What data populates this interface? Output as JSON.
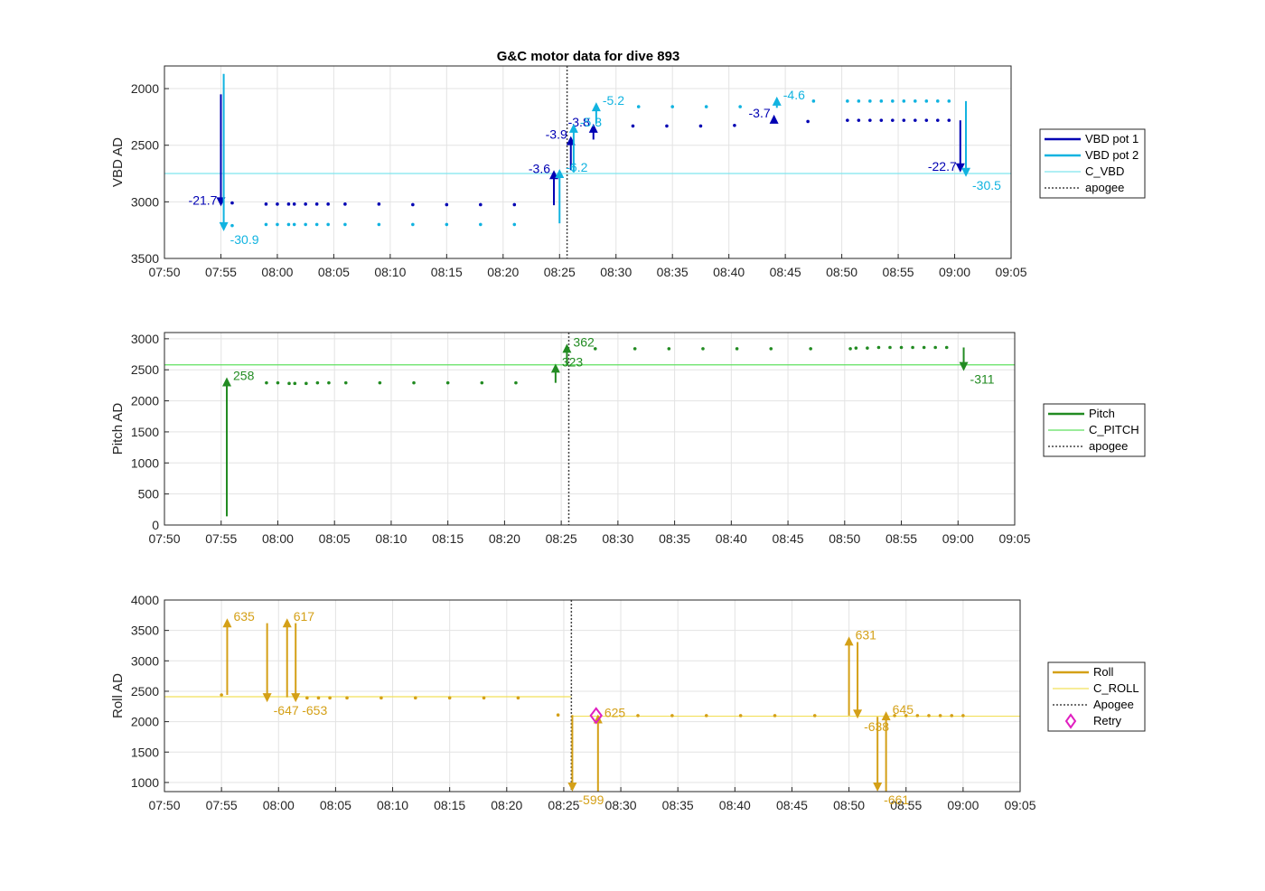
{
  "chart_data": [
    {
      "type": "line",
      "title": "G&C motor data for dive 893",
      "xlabel": "",
      "ylabel": "VBD AD",
      "x_range": [
        "07:50",
        "09:05"
      ],
      "ylim": [
        1800,
        3500
      ],
      "y_reversed": true,
      "yticks": [
        2000,
        2500,
        3000,
        3500
      ],
      "grid": true,
      "legend_position": "right",
      "legend": [
        "VBD pot 1",
        "VBD pot 2",
        "C_VBD",
        "apogee"
      ],
      "apogee_time": "08:25:40",
      "reference_lines": [
        {
          "name": "C_VBD",
          "y": 2750,
          "color": "#7fe5ee"
        }
      ],
      "series": [
        {
          "name": "VBD pot 1",
          "color": "#0000b3",
          "points": [
            [
              "07:56",
              3010
            ],
            [
              "07:59",
              3020
            ],
            [
              "08:00",
              3020
            ],
            [
              "08:01",
              3020
            ],
            [
              "08:01:30",
              3020
            ],
            [
              "08:02:30",
              3020
            ],
            [
              "08:03:30",
              3020
            ],
            [
              "08:04:30",
              3020
            ],
            [
              "08:06",
              3020
            ],
            [
              "08:09",
              3020
            ],
            [
              "08:12",
              3025
            ],
            [
              "08:15",
              3025
            ],
            [
              "08:18",
              3025
            ],
            [
              "08:21",
              3025
            ],
            [
              "08:31:30",
              2330
            ],
            [
              "08:34:30",
              2330
            ],
            [
              "08:37:30",
              2330
            ],
            [
              "08:40:30",
              2325
            ],
            [
              "08:47",
              2290
            ],
            [
              "08:50:30",
              2280
            ],
            [
              "08:51:30",
              2280
            ],
            [
              "08:52:30",
              2280
            ],
            [
              "08:53:30",
              2280
            ],
            [
              "08:54:30",
              2280
            ],
            [
              "08:55:30",
              2280
            ],
            [
              "08:56:30",
              2280
            ],
            [
              "08:57:30",
              2280
            ],
            [
              "08:58:30",
              2280
            ],
            [
              "08:59:30",
              2280
            ]
          ],
          "moves": [
            {
              "t": "07:55",
              "from": 2050,
              "to": 3040,
              "label": "-21.7"
            },
            {
              "t": "08:24:30",
              "from": 3030,
              "to": 2720,
              "label": "-3.6"
            },
            {
              "t": "08:26",
              "from": 2720,
              "to": 2420,
              "label": "-3.9"
            },
            {
              "t": "08:28",
              "from": 2450,
              "to": 2310,
              "label": "-3.8"
            },
            {
              "t": "08:44",
              "from": 2300,
              "to": 2230,
              "label": "-3.7"
            },
            {
              "t": "09:00:30",
              "from": 2280,
              "to": 2740,
              "label": "-22.7"
            }
          ]
        },
        {
          "name": "VBD pot 2",
          "color": "#11b3e0",
          "points": [
            [
              "07:56",
              3210
            ],
            [
              "07:59",
              3200
            ],
            [
              "08:00",
              3200
            ],
            [
              "08:01",
              3200
            ],
            [
              "08:01:30",
              3200
            ],
            [
              "08:02:30",
              3200
            ],
            [
              "08:03:30",
              3200
            ],
            [
              "08:04:30",
              3200
            ],
            [
              "08:06",
              3200
            ],
            [
              "08:09",
              3200
            ],
            [
              "08:12",
              3200
            ],
            [
              "08:15",
              3200
            ],
            [
              "08:18",
              3200
            ],
            [
              "08:21",
              3200
            ],
            [
              "08:32",
              2160
            ],
            [
              "08:35",
              2160
            ],
            [
              "08:38",
              2160
            ],
            [
              "08:41",
              2160
            ],
            [
              "08:47:30",
              2110
            ],
            [
              "08:50:30",
              2110
            ],
            [
              "08:51:30",
              2110
            ],
            [
              "08:52:30",
              2110
            ],
            [
              "08:53:30",
              2110
            ],
            [
              "08:54:30",
              2110
            ],
            [
              "08:55:30",
              2110
            ],
            [
              "08:56:30",
              2110
            ],
            [
              "08:57:30",
              2110
            ],
            [
              "08:58:30",
              2110
            ],
            [
              "08:59:30",
              2110
            ]
          ],
          "moves": [
            {
              "t": "07:55:15",
              "from": 1870,
              "to": 3260,
              "label": "-30.9"
            },
            {
              "t": "08:25",
              "from": 3190,
              "to": 2710,
              "label": "-6.2"
            },
            {
              "t": "08:26:15",
              "from": 2740,
              "to": 2310,
              "label": "-5.3"
            },
            {
              "t": "08:28:15",
              "from": 2310,
              "to": 2120,
              "label": "-5.2"
            },
            {
              "t": "08:44:15",
              "from": 2170,
              "to": 2070,
              "label": "-4.6"
            },
            {
              "t": "09:01",
              "from": 2110,
              "to": 2780,
              "label": "-30.5"
            }
          ]
        }
      ]
    },
    {
      "type": "line",
      "xlabel": "",
      "ylabel": "Pitch AD",
      "x_range": [
        "07:50",
        "09:05"
      ],
      "ylim": [
        0,
        3100
      ],
      "yticks": [
        0,
        500,
        1000,
        1500,
        2000,
        2500,
        3000
      ],
      "grid": true,
      "legend_position": "right",
      "legend": [
        "Pitch",
        "C_PITCH",
        "apogee"
      ],
      "apogee_time": "08:25:40",
      "reference_lines": [
        {
          "name": "C_PITCH",
          "y": 2580,
          "color": "#5fe05f"
        }
      ],
      "series": [
        {
          "name": "Pitch",
          "color": "#228b22",
          "points": [
            [
              "07:59",
              2290
            ],
            [
              "08:00",
              2290
            ],
            [
              "08:01",
              2280
            ],
            [
              "08:01:30",
              2280
            ],
            [
              "08:02:30",
              2280
            ],
            [
              "08:03:30",
              2290
            ],
            [
              "08:04:30",
              2290
            ],
            [
              "08:06",
              2290
            ],
            [
              "08:09",
              2290
            ],
            [
              "08:12",
              2290
            ],
            [
              "08:15",
              2290
            ],
            [
              "08:18",
              2290
            ],
            [
              "08:21",
              2290
            ],
            [
              "08:28",
              2840
            ],
            [
              "08:31:30",
              2840
            ],
            [
              "08:34:30",
              2840
            ],
            [
              "08:37:30",
              2840
            ],
            [
              "08:40:30",
              2840
            ],
            [
              "08:43:30",
              2840
            ],
            [
              "08:47",
              2840
            ],
            [
              "08:50:30",
              2840
            ],
            [
              "08:51",
              2850
            ],
            [
              "08:52",
              2850
            ],
            [
              "08:53",
              2860
            ],
            [
              "08:54",
              2860
            ],
            [
              "08:55",
              2860
            ],
            [
              "08:56",
              2860
            ],
            [
              "08:57",
              2860
            ],
            [
              "08:58",
              2860
            ],
            [
              "08:59",
              2860
            ]
          ],
          "moves": [
            {
              "t": "07:55:30",
              "from": 140,
              "to": 2380,
              "label": "258"
            },
            {
              "t": "08:24:30",
              "from": 2290,
              "to": 2600,
              "label": "323"
            },
            {
              "t": "08:25:30",
              "from": 2570,
              "to": 2920,
              "label": "362"
            },
            {
              "t": "09:00:30",
              "from": 2860,
              "to": 2480,
              "label": "-311"
            }
          ]
        }
      ]
    },
    {
      "type": "line",
      "xlabel": "",
      "ylabel": "Roll AD",
      "x_range": [
        "07:50",
        "09:05"
      ],
      "ylim": [
        850,
        4000
      ],
      "yticks": [
        1000,
        1500,
        2000,
        2500,
        3000,
        3500,
        4000
      ],
      "grid": true,
      "legend_position": "right",
      "legend": [
        "Roll",
        "C_ROLL",
        "Apogee",
        "Retry"
      ],
      "apogee_time": "08:25:40",
      "reference_lines": [
        {
          "name": "C_ROLL",
          "x_from": "07:50",
          "x_to": "08:25:40",
          "y": 2410,
          "color": "#f2e05a"
        },
        {
          "name": "C_ROLL",
          "x_from": "08:25:40",
          "x_to": "09:05",
          "y": 2090,
          "color": "#f2e05a"
        }
      ],
      "retry": {
        "t": "08:27:50",
        "y": 2100,
        "color": "#e020c0"
      },
      "series": [
        {
          "name": "Roll",
          "color": "#d4a017",
          "points": [
            [
              "07:55",
              2440
            ],
            [
              "07:59",
              2390
            ],
            [
              "08:02:30",
              2390
            ],
            [
              "08:03:30",
              2390
            ],
            [
              "08:04:30",
              2390
            ],
            [
              "08:06",
              2390
            ],
            [
              "08:09",
              2390
            ],
            [
              "08:12",
              2390
            ],
            [
              "08:15",
              2390
            ],
            [
              "08:18",
              2390
            ],
            [
              "08:21",
              2390
            ],
            [
              "08:24:30",
              2110
            ],
            [
              "08:31:30",
              2100
            ],
            [
              "08:34:30",
              2100
            ],
            [
              "08:37:30",
              2100
            ],
            [
              "08:40:30",
              2100
            ],
            [
              "08:43:30",
              2100
            ],
            [
              "08:47",
              2100
            ],
            [
              "08:54",
              2100
            ],
            [
              "08:55",
              2100
            ],
            [
              "08:56",
              2100
            ],
            [
              "08:57",
              2100
            ],
            [
              "08:58",
              2100
            ],
            [
              "08:59",
              2100
            ],
            [
              "09:00",
              2100
            ]
          ],
          "moves": [
            {
              "t": "07:55:30",
              "from": 2440,
              "to": 3700,
              "label": "635"
            },
            {
              "t": "07:59",
              "from": 3620,
              "to": 2320,
              "label": "-647"
            },
            {
              "t": "08:00:45",
              "from": 2400,
              "to": 3700,
              "label": "617"
            },
            {
              "t": "08:01:30",
              "from": 3620,
              "to": 2320,
              "label": "-653"
            },
            {
              "t": "08:25:45",
              "from": 2110,
              "to": 850,
              "label": "-599"
            },
            {
              "t": "08:28",
              "from": 850,
              "to": 2120,
              "label": "625"
            },
            {
              "t": "08:50",
              "from": 2100,
              "to": 3400,
              "label": "631"
            },
            {
              "t": "08:50:45",
              "from": 3310,
              "to": 2050,
              "label": "-638"
            },
            {
              "t": "08:52:30",
              "from": 2080,
              "to": 850,
              "label": "-661"
            },
            {
              "t": "08:53:15",
              "from": 850,
              "to": 2170,
              "label": "645"
            }
          ]
        }
      ]
    }
  ]
}
